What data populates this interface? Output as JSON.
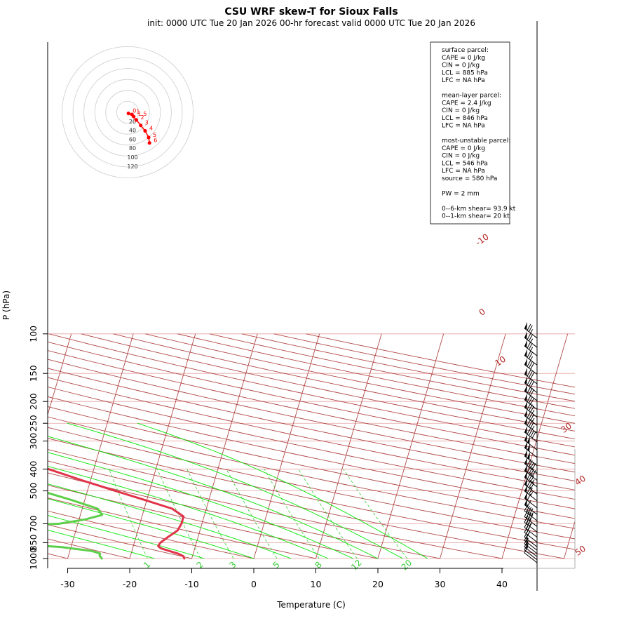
{
  "title": "CSU WRF skew-T for Sioux Falls",
  "subtitle": "init: 0000 UTC Tue 20 Jan 2026     00-hr forecast valid 0000 UTC Tue 20 Jan 2026",
  "colors": {
    "temperature": "#e0344a",
    "dewpoint": "#5ecf4a",
    "isotherm": "#a52a2a",
    "dry_adiabat": "#a52a2a",
    "moist_adiabat": "#00e600",
    "mixing_ratio": "#32cd32",
    "isobar": "#e6a0a0",
    "hodograph": "#ff0000"
  },
  "info_box": {
    "lines": [
      "surface parcel:",
      "CAPE = 0 J/kg",
      "CIN = 0 J/kg",
      "LCL = 885 hPa",
      "LFC = NA hPa",
      "",
      "mean-layer parcel:",
      "CAPE = 2.4 J/kg",
      "CIN = 0 J/kg",
      "LCL = 846 hPa",
      "LFC = NA hPa",
      "",
      "most-unstable parcel:",
      "CAPE = 0 J/kg",
      "CIN = 0 J/kg",
      "LCL = 546 hPa",
      "LFC = NA hPa",
      "source = 580 hPa",
      "",
      "PW =  2 mm",
      "",
      "0--6-km shear= 93.9 kt",
      "0--1-km shear= 20 kt"
    ]
  },
  "chart_data": {
    "type": "line",
    "title": "CSU WRF skew-T for Sioux Falls",
    "subtitle": "init: 0000 UTC Tue 20 Jan 2026     00-hr forecast valid 0000 UTC Tue 20 Jan 2026",
    "xlabel": "Temperature (C)",
    "ylabel": "P (hPa)",
    "x_ticks": [
      "-30",
      "-20",
      "-10",
      "0",
      "10",
      "20",
      "30",
      "40"
    ],
    "y_ticks": [
      "100",
      "150",
      "200",
      "250",
      "300",
      "400",
      "500",
      "700",
      "850",
      "1000"
    ],
    "isotherm_labels": [
      "-10",
      "0",
      "10",
      "30",
      "40",
      "50"
    ],
    "mixing_ratio_labels": [
      "1",
      "2",
      "3",
      "5",
      "8",
      "12",
      "20"
    ],
    "series": [
      {
        "name": "temperature",
        "points": [
          [
            1000,
            -11.2
          ],
          [
            975,
            -11.5
          ],
          [
            950,
            -12.5
          ],
          [
            925,
            -14.0
          ],
          [
            900,
            -15.5
          ],
          [
            880,
            -16.0
          ],
          [
            850,
            -15.8
          ],
          [
            800,
            -14.8
          ],
          [
            750,
            -13.6
          ],
          [
            700,
            -13.3
          ],
          [
            650,
            -13.3
          ],
          [
            600,
            -15.5
          ],
          [
            550,
            -20.2
          ],
          [
            500,
            -25.5
          ],
          [
            450,
            -31.2
          ],
          [
            400,
            -37.3
          ],
          [
            350,
            -44.0
          ],
          [
            325,
            -48.0
          ],
          [
            300,
            -51.6
          ],
          [
            275,
            -54.5
          ],
          [
            250,
            -55.5
          ],
          [
            225,
            -56.0
          ],
          [
            200,
            -56.3
          ],
          [
            175,
            -56.5
          ],
          [
            150,
            -57.0
          ],
          [
            125,
            -57.3
          ],
          [
            108,
            -57.5
          ]
        ]
      },
      {
        "name": "dewpoint",
        "points": [
          [
            1000,
            -24.5
          ],
          [
            970,
            -25.0
          ],
          [
            950,
            -25.0
          ],
          [
            925,
            -26.5
          ],
          [
            890,
            -31.5
          ],
          [
            850,
            -42.0
          ],
          [
            820,
            -48.0
          ],
          [
            780,
            -60.0
          ],
          [
            720,
            -44.0
          ],
          [
            700,
            -33.0
          ],
          [
            670,
            -29.0
          ],
          [
            640,
            -26.5
          ],
          [
            600,
            -27.5
          ],
          [
            550,
            -32.0
          ],
          [
            500,
            -37.5
          ],
          [
            450,
            -45.5
          ],
          [
            400,
            -53.0
          ],
          [
            350,
            -58.0
          ],
          [
            300,
            -64.5
          ],
          [
            275,
            -67.0
          ],
          [
            250,
            -68.5
          ],
          [
            225,
            -70.0
          ],
          [
            200,
            -71.5
          ],
          [
            175,
            -72.0
          ]
        ]
      }
    ],
    "hodograph": {
      "ring_labels": [
        "20",
        "40",
        "60",
        "80",
        "100",
        "120"
      ],
      "point_labels": [
        "0",
        "1",
        "1.5",
        "2",
        "3",
        "4",
        "5",
        "6"
      ],
      "points": [
        [
          2,
          2
        ],
        [
          10,
          4
        ],
        [
          14,
          8
        ],
        [
          20,
          14
        ],
        [
          30,
          24
        ],
        [
          40,
          34
        ],
        [
          48,
          46
        ],
        [
          50,
          56
        ]
      ]
    },
    "wind_barbs": [
      {
        "p": 100,
        "kt": 75
      },
      {
        "p": 110,
        "kt": 75
      },
      {
        "p": 120,
        "kt": 75
      },
      {
        "p": 132,
        "kt": 75
      },
      {
        "p": 145,
        "kt": 80
      },
      {
        "p": 160,
        "kt": 80
      },
      {
        "p": 175,
        "kt": 80
      },
      {
        "p": 190,
        "kt": 80
      },
      {
        "p": 208,
        "kt": 80
      },
      {
        "p": 225,
        "kt": 85
      },
      {
        "p": 245,
        "kt": 85
      },
      {
        "p": 265,
        "kt": 85
      },
      {
        "p": 290,
        "kt": 90
      },
      {
        "p": 315,
        "kt": 100
      },
      {
        "p": 340,
        "kt": 100
      },
      {
        "p": 370,
        "kt": 100
      },
      {
        "p": 400,
        "kt": 90
      },
      {
        "p": 430,
        "kt": 90
      },
      {
        "p": 460,
        "kt": 85
      },
      {
        "p": 495,
        "kt": 80
      },
      {
        "p": 530,
        "kt": 75
      },
      {
        "p": 570,
        "kt": 60
      },
      {
        "p": 610,
        "kt": 60
      },
      {
        "p": 650,
        "kt": 45
      },
      {
        "p": 690,
        "kt": 40
      },
      {
        "p": 730,
        "kt": 35
      },
      {
        "p": 770,
        "kt": 30
      },
      {
        "p": 810,
        "kt": 25
      },
      {
        "p": 850,
        "kt": 20
      },
      {
        "p": 880,
        "kt": 15
      },
      {
        "p": 910,
        "kt": 15
      },
      {
        "p": 940,
        "kt": 15
      },
      {
        "p": 970,
        "kt": 10
      },
      {
        "p": 1000,
        "kt": 10
      }
    ]
  }
}
